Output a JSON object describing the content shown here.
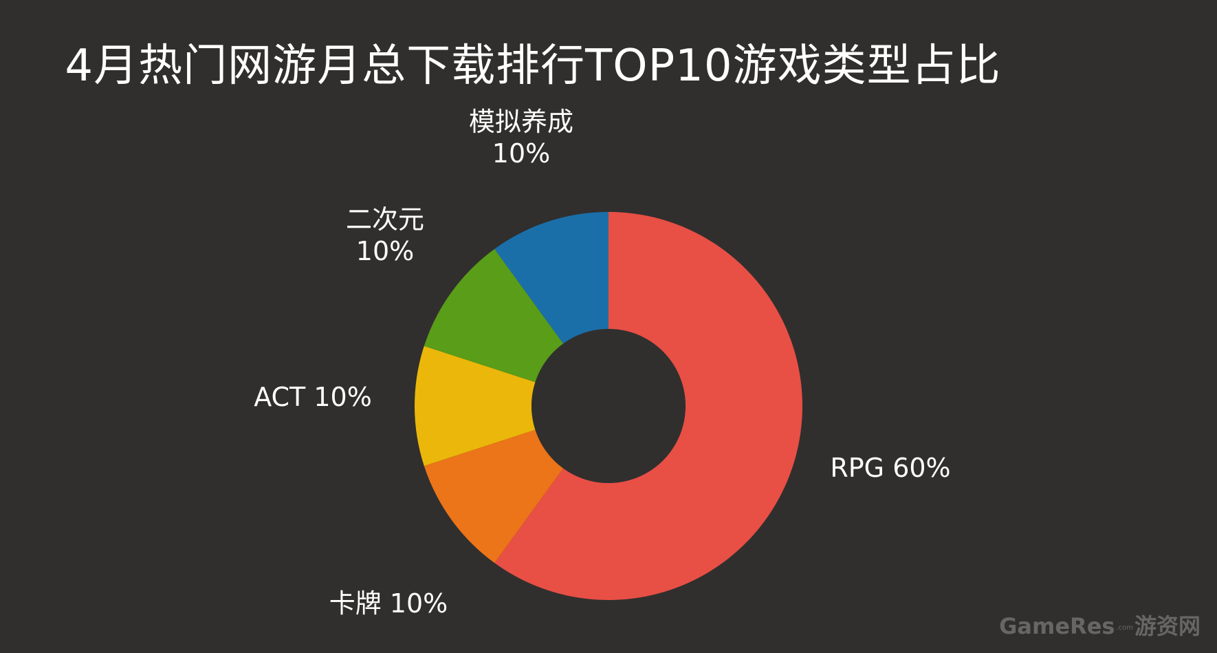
{
  "title": "4月热门网游月总下载排行TOP10游戏类型占比",
  "watermark": {
    "brand": "GameRes",
    "domain": ".com",
    "cn": "游资网"
  },
  "chart_data": {
    "type": "pie",
    "donut": true,
    "title": "4月热门网游月总下载排行TOP10游戏类型占比",
    "start": "12 o'clock",
    "direction": "clockwise",
    "slices": [
      {
        "name": "RPG",
        "value": 60,
        "label_lines": [
          "RPG 60%"
        ],
        "color": "#e84f45"
      },
      {
        "name": "卡牌",
        "value": 10,
        "label_lines": [
          "卡牌 10%"
        ],
        "color": "#ec7419"
      },
      {
        "name": "ACT",
        "value": 10,
        "label_lines": [
          "ACT 10%"
        ],
        "color": "#ebb70a"
      },
      {
        "name": "二次元",
        "value": 10,
        "label_lines": [
          "二次元",
          "10%"
        ],
        "color": "#599d18"
      },
      {
        "name": "模拟养成",
        "value": 10,
        "label_lines": [
          "模拟养成",
          "10%"
        ],
        "color": "#1b6fa9"
      }
    ],
    "legend": "none",
    "colors": {
      "background": "#302f2e",
      "text": "#ffffff"
    }
  }
}
